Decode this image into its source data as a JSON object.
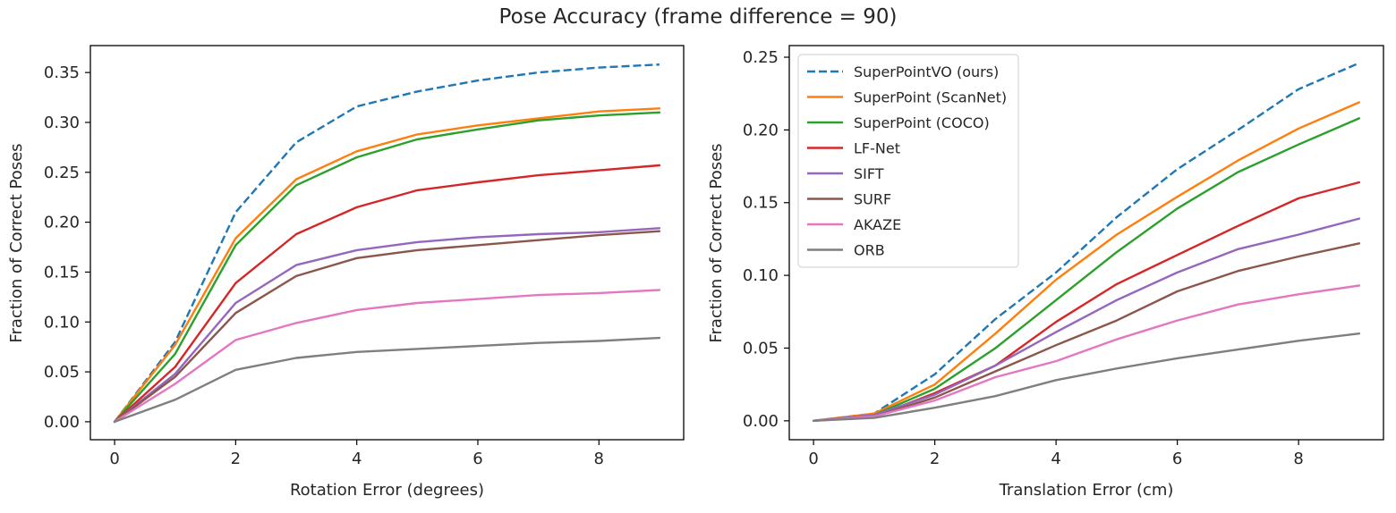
{
  "figure": {
    "title": "Pose Accuracy (frame difference = 90)"
  },
  "chart_data": [
    {
      "type": "line",
      "title": "",
      "xlabel": "Rotation Error (degrees)",
      "ylabel": "Fraction of Correct Poses",
      "xlim": [
        -0.4,
        9.4
      ],
      "ylim": [
        -0.018,
        0.377
      ],
      "xticks": [
        0,
        2,
        4,
        6,
        8
      ],
      "yticks": [
        0.0,
        0.05,
        0.1,
        0.15,
        0.2,
        0.25,
        0.3,
        0.35
      ],
      "ytick_decimals": 2,
      "grid": false,
      "legend": "none",
      "x": [
        0,
        1,
        2,
        3,
        4,
        5,
        6,
        7,
        8,
        9
      ],
      "series": [
        {
          "name": "SuperPointVO (ours)",
          "color": "#1f77b4",
          "dash": true,
          "values": [
            0,
            0.08,
            0.21,
            0.28,
            0.316,
            0.331,
            0.342,
            0.35,
            0.355,
            0.358
          ]
        },
        {
          "name": "SuperPoint (ScanNet)",
          "color": "#ff7f0e",
          "dash": false,
          "values": [
            0,
            0.077,
            0.184,
            0.243,
            0.271,
            0.288,
            0.297,
            0.304,
            0.311,
            0.314
          ]
        },
        {
          "name": "SuperPoint (COCO)",
          "color": "#2ca02c",
          "dash": false,
          "values": [
            0,
            0.068,
            0.177,
            0.237,
            0.265,
            0.283,
            0.293,
            0.302,
            0.307,
            0.31
          ]
        },
        {
          "name": "LF-Net",
          "color": "#d62728",
          "dash": false,
          "values": [
            0,
            0.055,
            0.139,
            0.188,
            0.215,
            0.232,
            0.24,
            0.247,
            0.252,
            0.257
          ]
        },
        {
          "name": "SIFT",
          "color": "#9467bd",
          "dash": false,
          "values": [
            0,
            0.048,
            0.119,
            0.157,
            0.172,
            0.18,
            0.185,
            0.188,
            0.19,
            0.194
          ]
        },
        {
          "name": "SURF",
          "color": "#8c564b",
          "dash": false,
          "values": [
            0,
            0.045,
            0.109,
            0.146,
            0.164,
            0.172,
            0.177,
            0.182,
            0.187,
            0.191
          ]
        },
        {
          "name": "AKAZE",
          "color": "#e377c2",
          "dash": false,
          "values": [
            0,
            0.038,
            0.082,
            0.099,
            0.112,
            0.119,
            0.123,
            0.127,
            0.129,
            0.132
          ]
        },
        {
          "name": "ORB",
          "color": "#7f7f7f",
          "dash": false,
          "values": [
            0,
            0.022,
            0.052,
            0.064,
            0.07,
            0.073,
            0.076,
            0.079,
            0.081,
            0.084
          ]
        }
      ]
    },
    {
      "type": "line",
      "title": "",
      "xlabel": "Translation Error (cm)",
      "ylabel": "Fraction of Correct Poses",
      "xlim": [
        -0.4,
        9.4
      ],
      "ylim": [
        -0.013,
        0.258
      ],
      "xticks": [
        0,
        2,
        4,
        6,
        8
      ],
      "yticks": [
        0.0,
        0.05,
        0.1,
        0.15,
        0.2,
        0.25
      ],
      "ytick_decimals": 2,
      "grid": false,
      "legend": "top-left",
      "x": [
        0,
        1,
        2,
        3,
        4,
        5,
        6,
        7,
        8,
        9
      ],
      "series": [
        {
          "name": "SuperPointVO (ours)",
          "color": "#1f77b4",
          "dash": true,
          "values": [
            0,
            0.005,
            0.032,
            0.07,
            0.102,
            0.14,
            0.173,
            0.2,
            0.228,
            0.246
          ]
        },
        {
          "name": "SuperPoint (ScanNet)",
          "color": "#ff7f0e",
          "dash": false,
          "values": [
            0,
            0.005,
            0.025,
            0.06,
            0.097,
            0.128,
            0.154,
            0.179,
            0.201,
            0.219
          ]
        },
        {
          "name": "SuperPoint (COCO)",
          "color": "#2ca02c",
          "dash": false,
          "values": [
            0,
            0.004,
            0.022,
            0.05,
            0.083,
            0.116,
            0.146,
            0.171,
            0.19,
            0.208
          ]
        },
        {
          "name": "LF-Net",
          "color": "#d62728",
          "dash": false,
          "values": [
            0,
            0.003,
            0.019,
            0.038,
            0.068,
            0.094,
            0.114,
            0.134,
            0.153,
            0.164
          ]
        },
        {
          "name": "SIFT",
          "color": "#9467bd",
          "dash": false,
          "values": [
            0,
            0.004,
            0.018,
            0.038,
            0.061,
            0.083,
            0.102,
            0.118,
            0.128,
            0.139
          ]
        },
        {
          "name": "SURF",
          "color": "#8c564b",
          "dash": false,
          "values": [
            0,
            0.003,
            0.016,
            0.034,
            0.052,
            0.069,
            0.089,
            0.103,
            0.113,
            0.122
          ]
        },
        {
          "name": "AKAZE",
          "color": "#e377c2",
          "dash": false,
          "values": [
            0,
            0.003,
            0.014,
            0.03,
            0.041,
            0.056,
            0.069,
            0.08,
            0.087,
            0.093
          ]
        },
        {
          "name": "ORB",
          "color": "#7f7f7f",
          "dash": false,
          "values": [
            0,
            0.002,
            0.009,
            0.017,
            0.028,
            0.036,
            0.043,
            0.049,
            0.055,
            0.06
          ]
        }
      ]
    }
  ]
}
